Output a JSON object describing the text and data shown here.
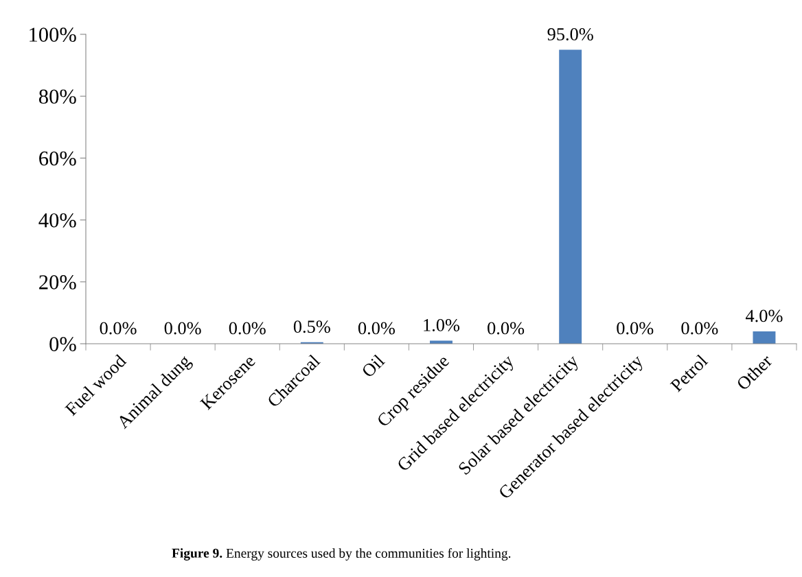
{
  "chart_data": {
    "type": "bar",
    "categories": [
      "Fuel wood",
      "Animal dung",
      "Kerosene",
      "Charcoal",
      "Oil",
      "Crop residue",
      "Grid based electricity",
      "Solar based electricity",
      "Generator based electricity",
      "Petrol",
      "Other"
    ],
    "values": [
      0,
      0,
      0,
      0.5,
      0,
      1,
      0,
      95,
      0,
      0,
      4
    ],
    "value_labels": [
      "0.0%",
      "0.0%",
      "0.0%",
      "0.5%",
      "0.0%",
      "1.0%",
      "0.0%",
      "95.0%",
      "0.0%",
      "0.0%",
      "4.0%"
    ],
    "color": "#4f81bd",
    "ylim": [
      0,
      100
    ],
    "yticks": [
      {
        "value": 0,
        "label": "0%"
      },
      {
        "value": 20,
        "label": "20%"
      },
      {
        "value": 40,
        "label": "40%"
      },
      {
        "value": 60,
        "label": "60%"
      },
      {
        "value": 80,
        "label": "80%"
      },
      {
        "value": 100,
        "label": "100%"
      }
    ],
    "grid": false,
    "annotations": [
      "Figure 9.",
      "Energy sources used by the communities for lighting."
    ]
  }
}
